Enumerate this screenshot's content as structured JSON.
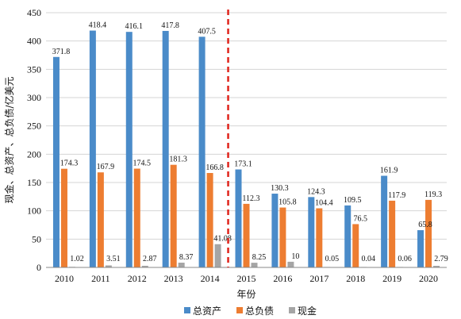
{
  "chart_data": {
    "type": "bar",
    "title": "",
    "xlabel": "年份",
    "ylabel": "现金、总资产、总负债/亿美元",
    "ylim": [
      0,
      450
    ],
    "yticks": [
      "0",
      "50",
      "100",
      "150",
      "200",
      "250",
      "300",
      "350",
      "400",
      "450"
    ],
    "grid": true,
    "legend_position": "bottom",
    "divider_after_category": "2014",
    "categories": [
      "2010",
      "2011",
      "2012",
      "2013",
      "2014",
      "2015",
      "2016",
      "2017",
      "2018",
      "2019",
      "2020"
    ],
    "series": [
      {
        "name": "总资产",
        "color": "#4a8bc9",
        "values": [
          371.8,
          418.4,
          416.1,
          417.8,
          407.5,
          173.1,
          130.3,
          124.3,
          109.5,
          161.9,
          65.8
        ],
        "labels": [
          "371.8",
          "418.4",
          "416.1",
          "417.8",
          "407.5",
          "173.1",
          "130.3",
          "124.3",
          "109.5",
          "161.9",
          "65.8"
        ]
      },
      {
        "name": "总负债",
        "color": "#ed7d31",
        "values": [
          174.3,
          167.9,
          174.5,
          181.3,
          166.8,
          112.3,
          105.8,
          104.4,
          76.5,
          117.9,
          119.3
        ],
        "labels": [
          "174.3",
          "167.9",
          "174.5",
          "181.3",
          "166.8",
          "112.3",
          "105.8",
          "104.4",
          "76.5",
          "117.9",
          "119.3"
        ]
      },
      {
        "name": "现金",
        "color": "#a5a5a5",
        "values": [
          1.02,
          3.51,
          2.87,
          8.37,
          41.08,
          8.25,
          10,
          0.05,
          0.04,
          0.06,
          2.79
        ],
        "labels": [
          "1.02",
          "3.51",
          "2.87",
          "8.37",
          "41.08",
          "8.25",
          "10",
          "0.05",
          "0.04",
          "0.06",
          "2.79"
        ]
      }
    ]
  }
}
